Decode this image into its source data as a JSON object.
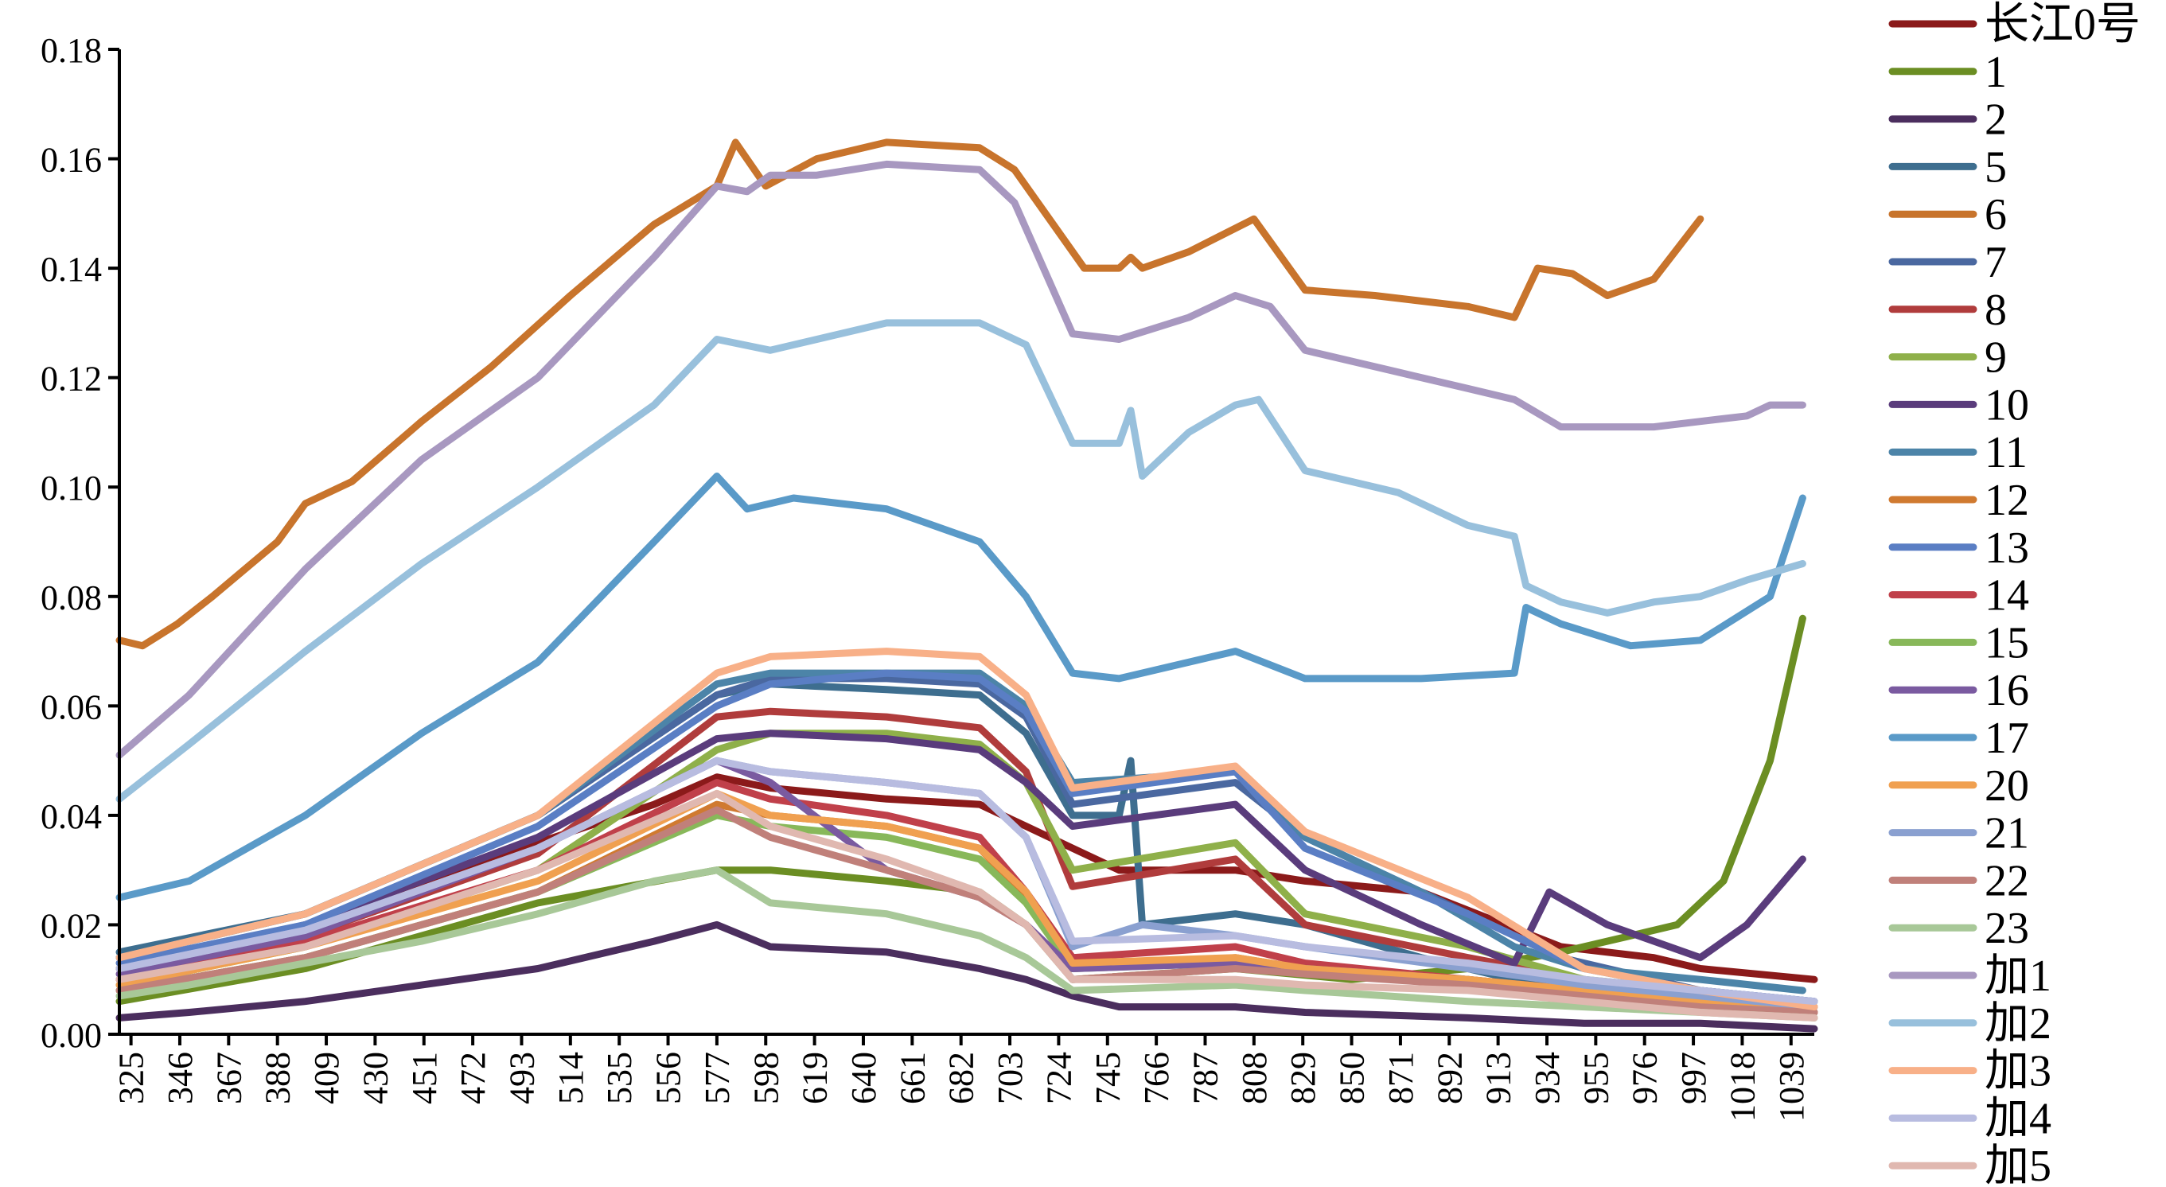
{
  "chart_data": {
    "type": "line",
    "title": "",
    "xlabel": "",
    "ylabel": "",
    "xlim": [
      320,
      1049
    ],
    "ylim": [
      0,
      0.18
    ],
    "y_ticks": [
      "0.00",
      "0.02",
      "0.04",
      "0.06",
      "0.08",
      "0.10",
      "0.12",
      "0.14",
      "0.16",
      "0.18"
    ],
    "y_tick_values": [
      0,
      0.02,
      0.04,
      0.06,
      0.08,
      0.1,
      0.12,
      0.14,
      0.16,
      0.18
    ],
    "x_ticks": [
      "325",
      "346",
      "367",
      "388",
      "409",
      "430",
      "451",
      "472",
      "493",
      "514",
      "535",
      "556",
      "577",
      "598",
      "619",
      "640",
      "661",
      "682",
      "703",
      "724",
      "745",
      "766",
      "787",
      "808",
      "829",
      "850",
      "871",
      "892",
      "913",
      "934",
      "955",
      "976",
      "997",
      "1018",
      "1039"
    ],
    "x_tick_values": [
      325,
      346,
      367,
      388,
      409,
      430,
      451,
      472,
      493,
      514,
      535,
      556,
      577,
      598,
      619,
      640,
      661,
      682,
      703,
      724,
      745,
      766,
      787,
      808,
      829,
      850,
      871,
      892,
      913,
      934,
      955,
      976,
      997,
      1018,
      1039
    ],
    "legend_position": "right",
    "grid": false,
    "series": [
      {
        "name": "长江0号",
        "color": "#8b1a1a",
        "x": [
          320,
          350,
          400,
          450,
          500,
          550,
          577,
          600,
          650,
          690,
          710,
          730,
          750,
          800,
          830,
          880,
          940,
          980,
          1000,
          1049
        ],
        "y": [
          0.012,
          0.014,
          0.02,
          0.027,
          0.035,
          0.042,
          0.047,
          0.045,
          0.043,
          0.042,
          0.038,
          0.034,
          0.03,
          0.03,
          0.028,
          0.026,
          0.016,
          0.014,
          0.012,
          0.01
        ]
      },
      {
        "name": "1",
        "color": "#6b8e23",
        "x": [
          320,
          400,
          500,
          577,
          600,
          650,
          690,
          710,
          730,
          800,
          850,
          900,
          940,
          970,
          990,
          1010,
          1030,
          1044
        ],
        "y": [
          0.006,
          0.012,
          0.024,
          0.03,
          0.03,
          0.028,
          0.026,
          0.02,
          0.01,
          0.012,
          0.01,
          0.012,
          0.015,
          0.018,
          0.02,
          0.028,
          0.05,
          0.076
        ]
      },
      {
        "name": "2",
        "color": "#4b2e5e",
        "x": [
          320,
          350,
          400,
          450,
          500,
          550,
          577,
          600,
          650,
          690,
          710,
          730,
          750,
          800,
          830,
          900,
          950,
          1000,
          1049
        ],
        "y": [
          0.003,
          0.004,
          0.006,
          0.009,
          0.012,
          0.017,
          0.02,
          0.016,
          0.015,
          0.012,
          0.01,
          0.007,
          0.005,
          0.005,
          0.004,
          0.003,
          0.002,
          0.002,
          0.001
        ]
      },
      {
        "name": "5",
        "color": "#3e6e8f",
        "x": [
          320,
          400,
          500,
          577,
          600,
          650,
          690,
          710,
          730,
          750,
          755,
          760,
          800,
          830,
          880,
          920,
          950,
          1000,
          1044
        ],
        "y": [
          0.015,
          0.022,
          0.04,
          0.062,
          0.064,
          0.063,
          0.062,
          0.055,
          0.04,
          0.04,
          0.05,
          0.02,
          0.022,
          0.02,
          0.014,
          0.01,
          0.009,
          0.008,
          0.006
        ]
      },
      {
        "name": "6",
        "color": "#c8742c",
        "x": [
          320,
          330,
          345,
          360,
          388,
          400,
          420,
          450,
          480,
          514,
          550,
          577,
          585,
          598,
          620,
          650,
          690,
          705,
          735,
          750,
          755,
          760,
          780,
          808,
          830,
          860,
          900,
          920,
          930,
          945,
          960,
          980,
          1000
        ],
        "y": [
          0.072,
          0.071,
          0.075,
          0.08,
          0.09,
          0.097,
          0.101,
          0.112,
          0.122,
          0.135,
          0.148,
          0.155,
          0.163,
          0.155,
          0.16,
          0.163,
          0.162,
          0.158,
          0.14,
          0.14,
          0.142,
          0.14,
          0.143,
          0.149,
          0.136,
          0.135,
          0.133,
          0.131,
          0.14,
          0.139,
          0.135,
          0.138,
          0.149
        ]
      },
      {
        "name": "7",
        "color": "#4a68a0",
        "x": [
          320,
          400,
          500,
          577,
          600,
          650,
          690,
          710,
          730,
          800,
          830,
          900,
          940,
          1000,
          1049
        ],
        "y": [
          0.014,
          0.022,
          0.04,
          0.062,
          0.065,
          0.065,
          0.064,
          0.058,
          0.042,
          0.046,
          0.036,
          0.022,
          0.014,
          0.008,
          0.006
        ]
      },
      {
        "name": "8",
        "color": "#b03c3c",
        "x": [
          320,
          400,
          500,
          577,
          600,
          650,
          690,
          710,
          730,
          800,
          830,
          900,
          950,
          1000,
          1049
        ],
        "y": [
          0.01,
          0.018,
          0.033,
          0.058,
          0.059,
          0.058,
          0.056,
          0.048,
          0.027,
          0.032,
          0.02,
          0.014,
          0.01,
          0.007,
          0.005
        ]
      },
      {
        "name": "9",
        "color": "#8fb04a",
        "x": [
          320,
          400,
          500,
          577,
          600,
          650,
          690,
          710,
          730,
          800,
          830,
          900,
          950,
          1000,
          1049
        ],
        "y": [
          0.009,
          0.016,
          0.03,
          0.052,
          0.055,
          0.055,
          0.053,
          0.046,
          0.03,
          0.035,
          0.022,
          0.016,
          0.01,
          0.008,
          0.005
        ]
      },
      {
        "name": "10",
        "color": "#5a3c7c",
        "x": [
          320,
          400,
          500,
          577,
          600,
          650,
          690,
          710,
          730,
          800,
          830,
          880,
          920,
          935,
          960,
          1000,
          1020,
          1044
        ],
        "y": [
          0.012,
          0.02,
          0.036,
          0.054,
          0.055,
          0.054,
          0.052,
          0.046,
          0.038,
          0.042,
          0.03,
          0.02,
          0.013,
          0.026,
          0.02,
          0.014,
          0.02,
          0.032
        ]
      },
      {
        "name": "11",
        "color": "#4c84a8",
        "x": [
          320,
          400,
          500,
          577,
          600,
          650,
          690,
          710,
          730,
          800,
          830,
          880,
          920,
          950,
          1000,
          1044
        ],
        "y": [
          0.014,
          0.022,
          0.04,
          0.064,
          0.066,
          0.066,
          0.066,
          0.06,
          0.046,
          0.048,
          0.036,
          0.026,
          0.016,
          0.012,
          0.01,
          0.008
        ]
      },
      {
        "name": "12",
        "color": "#d07a30",
        "x": [
          320,
          400,
          500,
          577,
          600,
          650,
          690,
          710,
          730,
          800,
          830,
          900,
          950,
          1000,
          1049
        ],
        "y": [
          0.008,
          0.014,
          0.026,
          0.042,
          0.04,
          0.038,
          0.034,
          0.025,
          0.012,
          0.014,
          0.012,
          0.01,
          0.008,
          0.006,
          0.004
        ]
      },
      {
        "name": "13",
        "color": "#5a7ec4",
        "x": [
          320,
          400,
          500,
          577,
          600,
          650,
          690,
          710,
          730,
          800,
          830,
          900,
          950,
          1000,
          1049
        ],
        "y": [
          0.013,
          0.02,
          0.038,
          0.06,
          0.064,
          0.066,
          0.065,
          0.059,
          0.044,
          0.048,
          0.034,
          0.022,
          0.012,
          0.008,
          0.006
        ]
      },
      {
        "name": "14",
        "color": "#c0404a",
        "x": [
          320,
          400,
          500,
          577,
          600,
          650,
          690,
          710,
          730,
          800,
          830,
          900,
          950,
          1000,
          1049
        ],
        "y": [
          0.01,
          0.017,
          0.03,
          0.046,
          0.043,
          0.04,
          0.036,
          0.026,
          0.014,
          0.016,
          0.013,
          0.01,
          0.008,
          0.006,
          0.004
        ]
      },
      {
        "name": "15",
        "color": "#88b85a",
        "x": [
          320,
          400,
          500,
          577,
          600,
          650,
          690,
          710,
          730,
          800,
          830,
          900,
          950,
          1000,
          1049
        ],
        "y": [
          0.008,
          0.014,
          0.026,
          0.04,
          0.038,
          0.036,
          0.032,
          0.024,
          0.012,
          0.013,
          0.012,
          0.01,
          0.007,
          0.005,
          0.003
        ]
      },
      {
        "name": "16",
        "color": "#7a5aa0",
        "x": [
          320,
          400,
          500,
          577,
          600,
          650,
          690,
          710,
          730,
          800,
          830,
          900,
          950,
          1000,
          1049
        ],
        "y": [
          0.011,
          0.018,
          0.034,
          0.05,
          0.046,
          0.03,
          0.025,
          0.02,
          0.012,
          0.013,
          0.012,
          0.01,
          0.007,
          0.005,
          0.004
        ]
      },
      {
        "name": "17",
        "color": "#5a9ac8",
        "x": [
          320,
          350,
          400,
          450,
          500,
          550,
          577,
          590,
          610,
          650,
          690,
          710,
          730,
          750,
          800,
          830,
          880,
          920,
          925,
          940,
          955,
          970,
          1000,
          1030,
          1044
        ],
        "y": [
          0.025,
          0.028,
          0.04,
          0.055,
          0.068,
          0.09,
          0.102,
          0.096,
          0.098,
          0.096,
          0.09,
          0.08,
          0.066,
          0.065,
          0.07,
          0.065,
          0.065,
          0.066,
          0.078,
          0.075,
          0.073,
          0.071,
          0.072,
          0.08,
          0.098
        ]
      },
      {
        "name": "20",
        "color": "#f0a050",
        "x": [
          320,
          400,
          500,
          577,
          600,
          650,
          690,
          710,
          730,
          800,
          830,
          900,
          950,
          1000,
          1049
        ],
        "y": [
          0.009,
          0.016,
          0.028,
          0.044,
          0.04,
          0.038,
          0.034,
          0.026,
          0.013,
          0.014,
          0.012,
          0.01,
          0.008,
          0.006,
          0.004
        ]
      },
      {
        "name": "21",
        "color": "#8aa0d0",
        "x": [
          320,
          400,
          500,
          577,
          600,
          650,
          690,
          710,
          730,
          760,
          800,
          830,
          900,
          950,
          1000,
          1049
        ],
        "y": [
          0.012,
          0.019,
          0.034,
          0.05,
          0.048,
          0.046,
          0.044,
          0.036,
          0.016,
          0.02,
          0.018,
          0.016,
          0.012,
          0.009,
          0.007,
          0.005
        ]
      },
      {
        "name": "22",
        "color": "#c0807a",
        "x": [
          320,
          400,
          500,
          577,
          600,
          650,
          690,
          710,
          730,
          800,
          830,
          900,
          950,
          1000,
          1049
        ],
        "y": [
          0.008,
          0.014,
          0.026,
          0.041,
          0.036,
          0.03,
          0.025,
          0.02,
          0.01,
          0.012,
          0.011,
          0.009,
          0.007,
          0.005,
          0.004
        ]
      },
      {
        "name": "23",
        "color": "#a8c898",
        "x": [
          320,
          350,
          400,
          450,
          500,
          550,
          577,
          600,
          650,
          690,
          710,
          730,
          800,
          830,
          900,
          950,
          1000,
          1049
        ],
        "y": [
          0.007,
          0.009,
          0.013,
          0.017,
          0.022,
          0.028,
          0.03,
          0.024,
          0.022,
          0.018,
          0.014,
          0.008,
          0.009,
          0.008,
          0.006,
          0.005,
          0.004,
          0.003
        ]
      },
      {
        "name": "加1",
        "color": "#a898c0",
        "x": [
          320,
          350,
          400,
          450,
          500,
          550,
          577,
          590,
          600,
          620,
          650,
          690,
          705,
          730,
          750,
          780,
          800,
          815,
          830,
          870,
          900,
          920,
          940,
          960,
          980,
          1000,
          1020,
          1030,
          1044
        ],
        "y": [
          0.051,
          0.062,
          0.085,
          0.105,
          0.12,
          0.142,
          0.155,
          0.154,
          0.157,
          0.157,
          0.159,
          0.158,
          0.152,
          0.128,
          0.127,
          0.131,
          0.135,
          0.133,
          0.125,
          0.121,
          0.118,
          0.116,
          0.111,
          0.111,
          0.111,
          0.112,
          0.113,
          0.115,
          0.115
        ]
      },
      {
        "name": "加2",
        "color": "#98c0dc",
        "x": [
          320,
          350,
          400,
          450,
          500,
          550,
          577,
          600,
          650,
          690,
          710,
          730,
          750,
          755,
          760,
          780,
          800,
          810,
          830,
          870,
          900,
          920,
          925,
          940,
          960,
          980,
          1000,
          1020,
          1044
        ],
        "y": [
          0.043,
          0.053,
          0.07,
          0.086,
          0.1,
          0.115,
          0.127,
          0.125,
          0.13,
          0.13,
          0.126,
          0.108,
          0.108,
          0.114,
          0.102,
          0.11,
          0.115,
          0.116,
          0.103,
          0.099,
          0.093,
          0.091,
          0.082,
          0.079,
          0.077,
          0.079,
          0.08,
          0.083,
          0.086
        ]
      },
      {
        "name": "加3",
        "color": "#f8b088",
        "x": [
          320,
          400,
          500,
          577,
          600,
          650,
          690,
          710,
          730,
          800,
          830,
          900,
          950,
          1000,
          1049
        ],
        "y": [
          0.014,
          0.022,
          0.04,
          0.066,
          0.069,
          0.07,
          0.069,
          0.062,
          0.045,
          0.049,
          0.037,
          0.025,
          0.012,
          0.008,
          0.005
        ]
      },
      {
        "name": "加4",
        "color": "#b8bce0",
        "x": [
          320,
          400,
          500,
          577,
          600,
          650,
          690,
          710,
          730,
          800,
          830,
          900,
          950,
          1000,
          1049
        ],
        "y": [
          0.012,
          0.019,
          0.034,
          0.05,
          0.048,
          0.046,
          0.044,
          0.036,
          0.017,
          0.018,
          0.016,
          0.013,
          0.01,
          0.008,
          0.006
        ]
      },
      {
        "name": "加5",
        "color": "#e0b8b0",
        "x": [
          320,
          400,
          500,
          577,
          600,
          650,
          690,
          710,
          730,
          800,
          830,
          900,
          950,
          1000,
          1049
        ],
        "y": [
          0.01,
          0.016,
          0.03,
          0.044,
          0.038,
          0.032,
          0.026,
          0.02,
          0.01,
          0.01,
          0.009,
          0.008,
          0.006,
          0.004,
          0.003
        ]
      }
    ]
  }
}
